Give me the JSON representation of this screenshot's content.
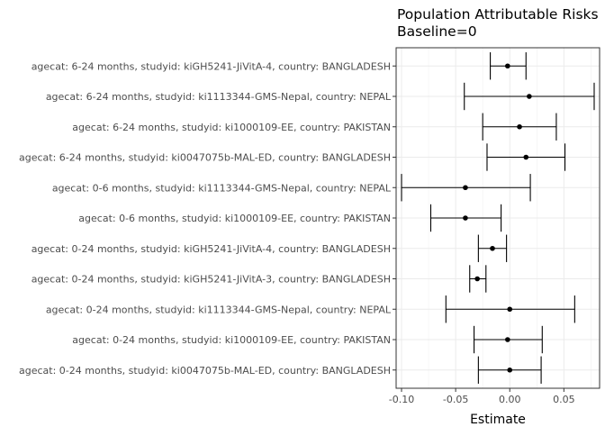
{
  "chart_data": {
    "type": "forest",
    "title": "Population Attributable Risks",
    "subtitle": "Baseline=0",
    "xlabel": "Estimate",
    "ylabel": "",
    "xlim": [
      -0.105,
      0.083
    ],
    "xticks": [
      -0.1,
      -0.05,
      0.0,
      0.05
    ],
    "xtick_labels": [
      "-0.10",
      "-0.05",
      "0.00",
      "0.05"
    ],
    "grid": true,
    "rows": [
      {
        "label": "agecat: 6-24 months, studyid: kiGH5241-JiVitA-4, country: BANGLADESH",
        "estimate": -0.002,
        "lower": -0.018,
        "upper": 0.015
      },
      {
        "label": "agecat: 6-24 months, studyid: ki1113344-GMS-Nepal, country: NEPAL",
        "estimate": 0.018,
        "lower": -0.042,
        "upper": 0.078
      },
      {
        "label": "agecat: 6-24 months, studyid: ki1000109-EE, country: PAKISTAN",
        "estimate": 0.009,
        "lower": -0.025,
        "upper": 0.043
      },
      {
        "label": "agecat: 6-24 months, studyid: ki0047075b-MAL-ED, country: BANGLADESH",
        "estimate": 0.015,
        "lower": -0.021,
        "upper": 0.051
      },
      {
        "label": "agecat: 0-6 months, studyid: ki1113344-GMS-Nepal, country: NEPAL",
        "estimate": -0.041,
        "lower": -0.1,
        "upper": 0.019
      },
      {
        "label": "agecat: 0-6 months, studyid: ki1000109-EE, country: PAKISTAN",
        "estimate": -0.041,
        "lower": -0.073,
        "upper": -0.008
      },
      {
        "label": "agecat: 0-24 months, studyid: kiGH5241-JiVitA-4, country: BANGLADESH",
        "estimate": -0.016,
        "lower": -0.029,
        "upper": -0.003
      },
      {
        "label": "agecat: 0-24 months, studyid: kiGH5241-JiVitA-3, country: BANGLADESH",
        "estimate": -0.03,
        "lower": -0.037,
        "upper": -0.022
      },
      {
        "label": "agecat: 0-24 months, studyid: ki1113344-GMS-Nepal, country: NEPAL",
        "estimate": 0.0,
        "lower": -0.059,
        "upper": 0.06
      },
      {
        "label": "agecat: 0-24 months, studyid: ki1000109-EE, country: PAKISTAN",
        "estimate": -0.002,
        "lower": -0.033,
        "upper": 0.03
      },
      {
        "label": "agecat: 0-24 months, studyid: ki0047075b-MAL-ED, country: BANGLADESH",
        "estimate": 0.0,
        "lower": -0.029,
        "upper": 0.029
      }
    ]
  }
}
